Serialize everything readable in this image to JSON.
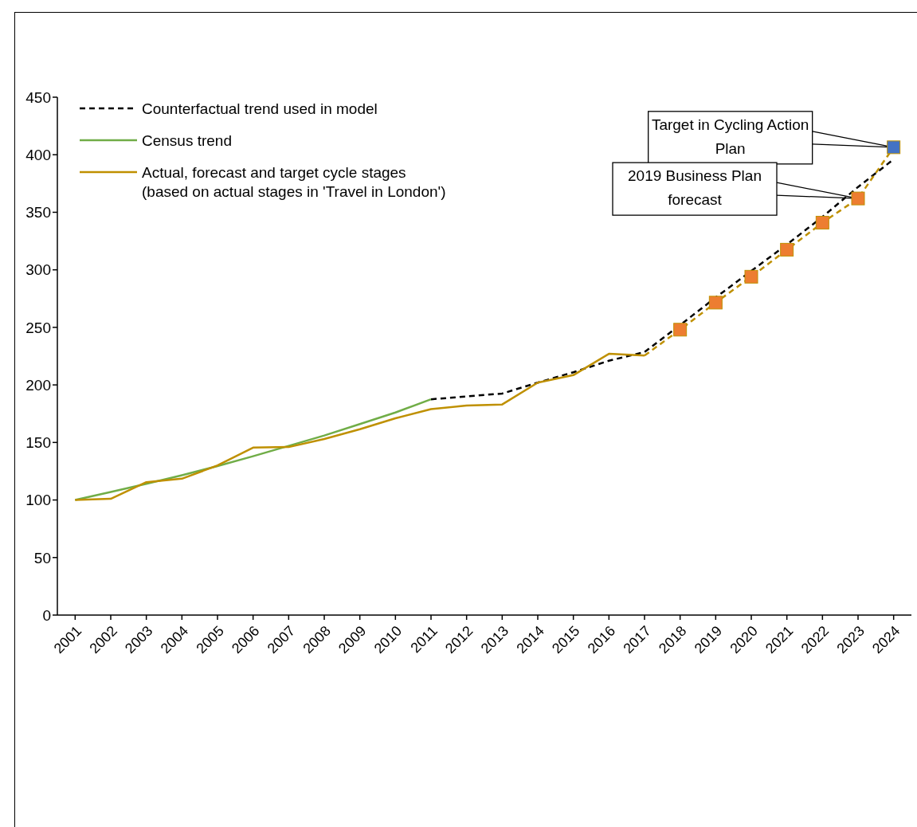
{
  "chart_data": {
    "type": "line",
    "categories": [
      "2001",
      "2002",
      "2003",
      "2004",
      "2005",
      "2006",
      "2007",
      "2008",
      "2009",
      "2010",
      "2011",
      "2012",
      "2013",
      "2014",
      "2015",
      "2016",
      "2017",
      "2018",
      "2019",
      "2020",
      "2021",
      "2022",
      "2023",
      "2024"
    ],
    "ylim": [
      0,
      450
    ],
    "yticks": [
      0,
      50,
      100,
      150,
      200,
      250,
      300,
      350,
      400,
      450
    ],
    "grid": false,
    "legend": "top left",
    "series": [
      {
        "name": "Counterfactual trend used in model",
        "color": "#000000",
        "line_style": "dashed",
        "marker": "none",
        "values": [
          null,
          null,
          null,
          null,
          null,
          null,
          null,
          null,
          null,
          null,
          187.5,
          190,
          192.5,
          202,
          211,
          221,
          228.5,
          252,
          276,
          299,
          322,
          346,
          372,
          396
        ]
      },
      {
        "name": "Census trend",
        "color": "#70ad47",
        "line_style": "solid",
        "marker": "none",
        "values": [
          100,
          107,
          114,
          121.5,
          129.5,
          138,
          147,
          156,
          166,
          176,
          187.5,
          null,
          null,
          null,
          null,
          null,
          null,
          null,
          null,
          null,
          null,
          null,
          null,
          null
        ]
      },
      {
        "name": "Actual, forecast and target cycle stages\n(based on actual stages in 'Travel in London')",
        "color": "#bf9000",
        "line_style": "solid",
        "marker": "none",
        "values": [
          100,
          101,
          115.5,
          118.5,
          130,
          145.5,
          146,
          153,
          161.5,
          171,
          179,
          182,
          183,
          202,
          208.5,
          227,
          225.5,
          null,
          null,
          null,
          null,
          null,
          null,
          null
        ]
      },
      {
        "type": "line",
        "color": "#bf9000",
        "line_style": "dashed",
        "marker": "none",
        "values": [
          null,
          null,
          null,
          null,
          null,
          null,
          null,
          null,
          null,
          null,
          null,
          null,
          null,
          null,
          null,
          null,
          225.5,
          248,
          271.5,
          294,
          317.5,
          341,
          362,
          406.5
        ]
      },
      {
        "type": "scatter",
        "marker": "square",
        "colors": [
          null,
          null,
          null,
          null,
          null,
          null,
          null,
          null,
          null,
          null,
          null,
          null,
          null,
          null,
          null,
          null,
          null,
          "#ed7d31",
          "#ed7d31",
          "#ed7d31",
          "#ed7d31",
          "#ed7d31",
          "#ed7d31",
          "#4472c4"
        ],
        "values": [
          null,
          null,
          null,
          null,
          null,
          null,
          null,
          null,
          null,
          null,
          null,
          null,
          null,
          null,
          null,
          null,
          null,
          248,
          271.5,
          294,
          317.5,
          341,
          362,
          406.5
        ]
      }
    ],
    "annotations": [
      "Target in Cycling Action Plan",
      "2019 Business Plan forecast"
    ]
  }
}
